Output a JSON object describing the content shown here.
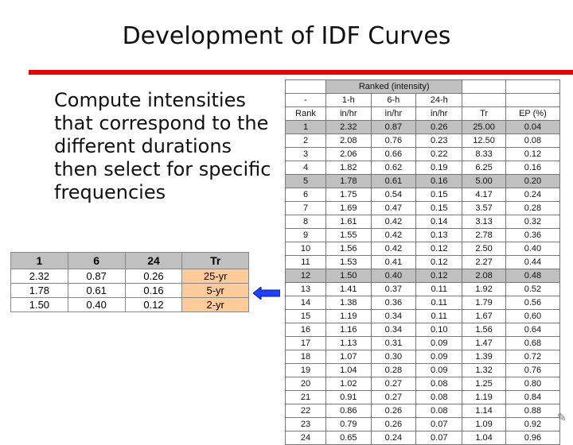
{
  "title": "Development of IDF Curves",
  "bullet": "Compute intensities that correspond to the different durations then select for specific frequencies",
  "summary_table": {
    "headers": [
      "1",
      "6",
      "24",
      "Tr"
    ],
    "rows": [
      [
        "2.32",
        "0.87",
        "0.26",
        "25-yr"
      ],
      [
        "1.78",
        "0.61",
        "0.16",
        "5-yr"
      ],
      [
        "1.50",
        "0.40",
        "0.12",
        "2-yr"
      ]
    ]
  },
  "ranked_table": {
    "group_header": "Ranked (intensity)",
    "header1": [
      "-",
      "1-h",
      "6-h",
      "24-h",
      "",
      ""
    ],
    "header2": [
      "Rank",
      "in/hr",
      "in/hr",
      "in/hr",
      "Tr",
      "EP (%)"
    ],
    "highlight_rows": [
      1,
      5,
      12
    ],
    "rows": [
      [
        "1",
        "2.32",
        "0.87",
        "0.26",
        "25.00",
        "0.04"
      ],
      [
        "2",
        "2.08",
        "0.76",
        "0.23",
        "12.50",
        "0.08"
      ],
      [
        "3",
        "2.06",
        "0.66",
        "0.22",
        "8.33",
        "0.12"
      ],
      [
        "4",
        "1.82",
        "0.62",
        "0.19",
        "6.25",
        "0.16"
      ],
      [
        "5",
        "1.78",
        "0.61",
        "0.16",
        "5.00",
        "0.20"
      ],
      [
        "6",
        "1.75",
        "0.54",
        "0.15",
        "4.17",
        "0.24"
      ],
      [
        "7",
        "1.69",
        "0.47",
        "0.15",
        "3.57",
        "0.28"
      ],
      [
        "8",
        "1.61",
        "0.42",
        "0.14",
        "3.13",
        "0.32"
      ],
      [
        "9",
        "1.55",
        "0.42",
        "0.13",
        "2.78",
        "0.36"
      ],
      [
        "10",
        "1.56",
        "0.42",
        "0.12",
        "2.50",
        "0.40"
      ],
      [
        "11",
        "1.53",
        "0.41",
        "0.12",
        "2.27",
        "0.44"
      ],
      [
        "12",
        "1.50",
        "0.40",
        "0.12",
        "2.08",
        "0.48"
      ],
      [
        "13",
        "1.41",
        "0.37",
        "0.11",
        "1.92",
        "0.52"
      ],
      [
        "14",
        "1.38",
        "0.36",
        "0.11",
        "1.79",
        "0.56"
      ],
      [
        "15",
        "1.19",
        "0.34",
        "0.11",
        "1.67",
        "0.60"
      ],
      [
        "16",
        "1.16",
        "0.34",
        "0.10",
        "1.56",
        "0.64"
      ],
      [
        "17",
        "1.13",
        "0.31",
        "0.09",
        "1.47",
        "0.68"
      ],
      [
        "18",
        "1.07",
        "0.30",
        "0.09",
        "1.39",
        "0.72"
      ],
      [
        "19",
        "1.04",
        "0.28",
        "0.09",
        "1.32",
        "0.76"
      ],
      [
        "20",
        "1.02",
        "0.27",
        "0.08",
        "1.25",
        "0.80"
      ],
      [
        "21",
        "0.91",
        "0.27",
        "0.08",
        "1.19",
        "0.84"
      ],
      [
        "22",
        "0.86",
        "0.26",
        "0.08",
        "1.14",
        "0.88"
      ],
      [
        "23",
        "0.79",
        "0.26",
        "0.07",
        "1.09",
        "0.92"
      ],
      [
        "24",
        "0.65",
        "0.24",
        "0.07",
        "1.04",
        "0.96"
      ]
    ]
  },
  "icons": {
    "arrow": "left-arrow-icon",
    "pencil": "pencil-icon"
  },
  "colors": {
    "accent_bar": "#e60000",
    "header_gray": "#c0c0c0",
    "tr_orange": "#ffcc99",
    "arrow_blue": "#1f3fff"
  }
}
